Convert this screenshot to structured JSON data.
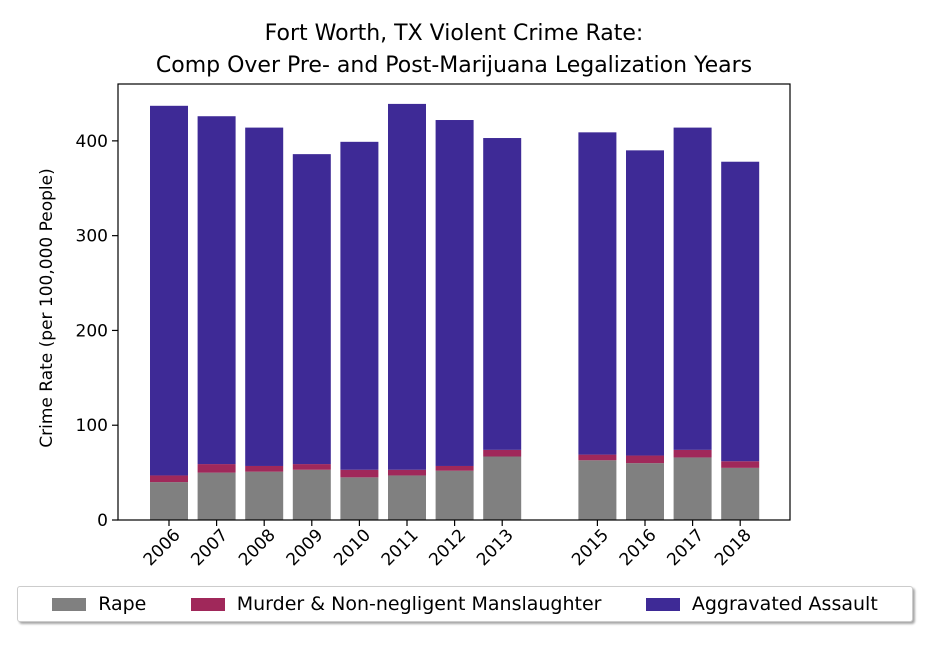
{
  "chart_data": {
    "type": "bar",
    "stacked": true,
    "title_line1": "Fort Worth, TX Violent Crime Rate:",
    "title_line2": "Comp Over Pre- and Post-Marijuana Legalization Years",
    "ylabel": "Crime Rate (per 100,000 People)",
    "xlabel": "",
    "ylim": [
      0,
      460
    ],
    "yticks": [
      0,
      100,
      200,
      300,
      400
    ],
    "categories": [
      "2006",
      "2007",
      "2008",
      "2009",
      "2010",
      "2011",
      "2012",
      "2013",
      "2015",
      "2016",
      "2017",
      "2018"
    ],
    "series": [
      {
        "name": "Rape",
        "color": "#808080",
        "values": [
          40,
          50,
          51,
          53,
          45,
          47,
          52,
          67,
          63,
          60,
          66,
          55
        ]
      },
      {
        "name": "Murder & Non-negligent Manslaughter",
        "color": "#a0285a",
        "values": [
          7,
          9,
          6,
          6,
          8,
          6,
          5,
          7,
          6,
          8,
          8,
          7
        ]
      },
      {
        "name": "Aggravated Assault",
        "color": "#3e2a96",
        "values": [
          390,
          367,
          357,
          327,
          346,
          386,
          365,
          329,
          340,
          322,
          340,
          316
        ]
      }
    ],
    "grid": false,
    "legend_position": "bottom"
  },
  "legend": {
    "rape": "Rape",
    "murder": "Murder & Non-negligent Manslaughter",
    "assault": "Aggravated Assault"
  }
}
